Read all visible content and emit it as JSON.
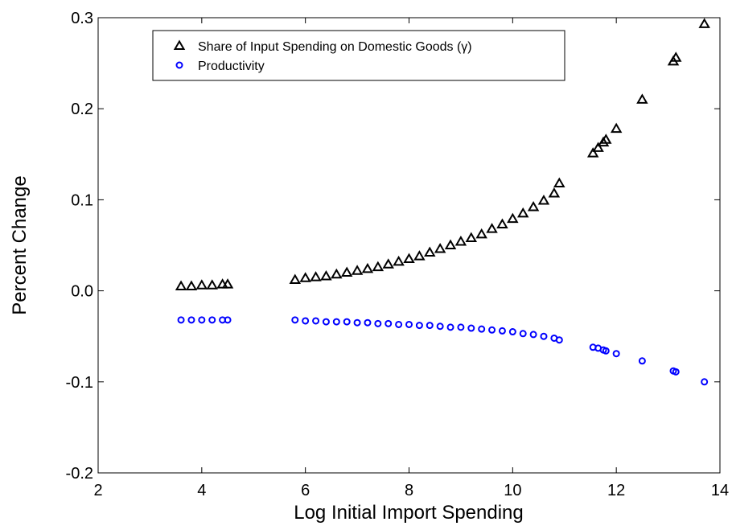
{
  "chart_data": {
    "type": "scatter",
    "xlabel": "Log Initial Import Spending",
    "ylabel": "Percent Change",
    "x": [
      3.6,
      3.8,
      4.0,
      4.2,
      4.4,
      4.5,
      5.8,
      6.0,
      6.2,
      6.4,
      6.6,
      6.8,
      7.0,
      7.2,
      7.4,
      7.6,
      7.8,
      8.0,
      8.2,
      8.4,
      8.6,
      8.8,
      9.0,
      9.2,
      9.4,
      9.6,
      9.8,
      10.0,
      10.2,
      10.4,
      10.6,
      10.8,
      10.9,
      11.55,
      11.65,
      11.75,
      11.8,
      12.0,
      12.5,
      13.1,
      13.15,
      13.7
    ],
    "series": [
      {
        "name": "Share of Input Spending on Domestic Goods (γ)",
        "color": "#000000",
        "marker": "triangle",
        "values": [
          0.005,
          0.005,
          0.006,
          0.006,
          0.007,
          0.007,
          0.012,
          0.014,
          0.015,
          0.016,
          0.018,
          0.02,
          0.022,
          0.024,
          0.026,
          0.029,
          0.032,
          0.035,
          0.038,
          0.042,
          0.046,
          0.05,
          0.054,
          0.058,
          0.062,
          0.068,
          0.073,
          0.079,
          0.085,
          0.092,
          0.099,
          0.107,
          0.118,
          0.151,
          0.157,
          0.163,
          0.166,
          0.178,
          0.21,
          0.252,
          0.256,
          0.293
        ]
      },
      {
        "name": "Productivity",
        "color": "#0000ff",
        "marker": "circle",
        "values": [
          -0.032,
          -0.032,
          -0.032,
          -0.032,
          -0.032,
          -0.032,
          -0.032,
          -0.033,
          -0.033,
          -0.034,
          -0.034,
          -0.034,
          -0.035,
          -0.035,
          -0.036,
          -0.036,
          -0.037,
          -0.037,
          -0.038,
          -0.038,
          -0.039,
          -0.04,
          -0.04,
          -0.041,
          -0.042,
          -0.043,
          -0.044,
          -0.045,
          -0.047,
          -0.048,
          -0.05,
          -0.052,
          -0.054,
          -0.062,
          -0.063,
          -0.065,
          -0.066,
          -0.069,
          -0.077,
          -0.088,
          -0.089,
          -0.1
        ]
      }
    ],
    "xlim": [
      2,
      14
    ],
    "xticks": [
      2,
      4,
      6,
      8,
      10,
      12,
      14
    ],
    "ylim": [
      -0.2,
      0.3
    ],
    "yticks": [
      -0.2,
      -0.1,
      {
        "value": 0,
        "label": "0.0"
      },
      0.1,
      0.2,
      0.3
    ],
    "legend": "top-left",
    "grid": false
  }
}
